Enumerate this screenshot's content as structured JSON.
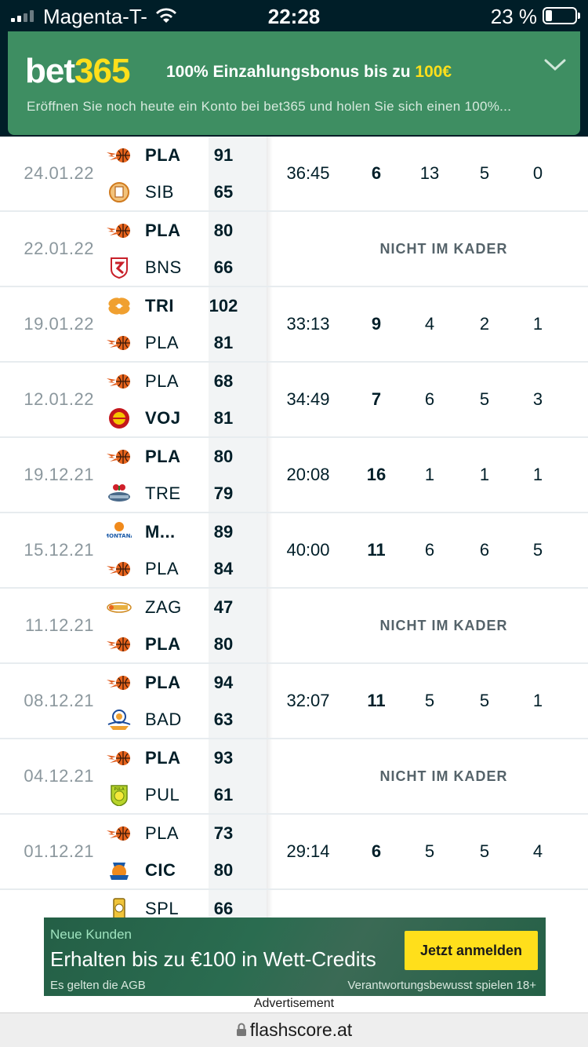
{
  "status_bar": {
    "carrier": "Magenta-T-",
    "time": "22:28",
    "battery": "23 %"
  },
  "top_banner": {
    "brand_a": "bet",
    "brand_b": "365",
    "headline": "100% Einzahlungsbonus bis zu ",
    "headline_amount": "100€",
    "subline": "Eröffnen Sie noch heute ein Konto bei bet365 und holen Sie sich einen 100%..."
  },
  "matches": [
    {
      "date": "24.01.22",
      "home": "PLA",
      "home_score": "91",
      "home_win": true,
      "home_logo": "pla",
      "away": "SIB",
      "away_score": "65",
      "away_win": false,
      "away_logo": "sib",
      "minutes": "36:45",
      "points": "6",
      "s3": "13",
      "s4": "5",
      "s5": "0"
    },
    {
      "date": "22.01.22",
      "home": "PLA",
      "home_score": "80",
      "home_win": true,
      "home_logo": "pla",
      "away": "BNS",
      "away_score": "66",
      "away_win": false,
      "away_logo": "bns",
      "not_in_squad": "NICHT IM KADER"
    },
    {
      "date": "19.01.22",
      "home": "TRI",
      "home_score": "102",
      "home_win": true,
      "home_logo": "tri",
      "away": "PLA",
      "away_score": "81",
      "away_win": false,
      "away_logo": "pla",
      "minutes": "33:13",
      "points": "9",
      "s3": "4",
      "s4": "2",
      "s5": "1"
    },
    {
      "date": "12.01.22",
      "home": "PLA",
      "home_score": "68",
      "home_win": false,
      "home_logo": "pla",
      "away": "VOJ",
      "away_score": "81",
      "away_win": true,
      "away_logo": "voj",
      "minutes": "34:49",
      "points": "7",
      "s3": "6",
      "s4": "5",
      "s5": "3"
    },
    {
      "date": "19.12.21",
      "home": "PLA",
      "home_score": "80",
      "home_win": true,
      "home_logo": "pla",
      "away": "TRE",
      "away_score": "79",
      "away_win": false,
      "away_logo": "tre",
      "minutes": "20:08",
      "points": "16",
      "s3": "1",
      "s4": "1",
      "s5": "1"
    },
    {
      "date": "15.12.21",
      "home": "M...",
      "home_score": "89",
      "home_win": true,
      "home_logo": "mon",
      "away": "PLA",
      "away_score": "84",
      "away_win": false,
      "away_logo": "pla",
      "minutes": "40:00",
      "points": "11",
      "s3": "6",
      "s4": "6",
      "s5": "5"
    },
    {
      "date": "11.12.21",
      "home": "ZAG",
      "home_score": "47",
      "home_win": false,
      "home_logo": "zag",
      "away": "PLA",
      "away_score": "80",
      "away_win": true,
      "away_logo": "pla",
      "not_in_squad": "NICHT IM KADER"
    },
    {
      "date": "08.12.21",
      "home": "PLA",
      "home_score": "94",
      "home_win": true,
      "home_logo": "pla",
      "away": "BAD",
      "away_score": "63",
      "away_win": false,
      "away_logo": "bad",
      "minutes": "32:07",
      "points": "11",
      "s3": "5",
      "s4": "5",
      "s5": "1"
    },
    {
      "date": "04.12.21",
      "home": "PLA",
      "home_score": "93",
      "home_win": true,
      "home_logo": "pla",
      "away": "PUL",
      "away_score": "61",
      "away_win": false,
      "away_logo": "pul",
      "not_in_squad": "NICHT IM KADER"
    },
    {
      "date": "01.12.21",
      "home": "PLA",
      "home_score": "73",
      "home_win": false,
      "home_logo": "pla",
      "away": "CIC",
      "away_score": "80",
      "away_win": true,
      "away_logo": "cic",
      "minutes": "29:14",
      "points": "6",
      "s3": "5",
      "s4": "5",
      "s5": "4"
    },
    {
      "date": "",
      "home": "SPL",
      "home_score": "66",
      "home_win": false,
      "home_logo": "spl",
      "away": "",
      "away_score": "",
      "away_win": false,
      "away_logo": "",
      "partial": true
    }
  ],
  "ad": {
    "kicker": "Neue Kunden",
    "title": "Erhalten bis zu €100 in Wett-Credits",
    "button": "Jetzt anmelden",
    "foot_left": "Es gelten die AGB",
    "foot_right": "Verantwortungsbewusst spielen   18+",
    "label": "Advertisement"
  },
  "url_bar": {
    "url": "flashscore.at"
  },
  "colors": {
    "banner_green": "#3e8e62",
    "brand_yellow": "#ffdf1b",
    "dark_navy": "#001e28"
  }
}
